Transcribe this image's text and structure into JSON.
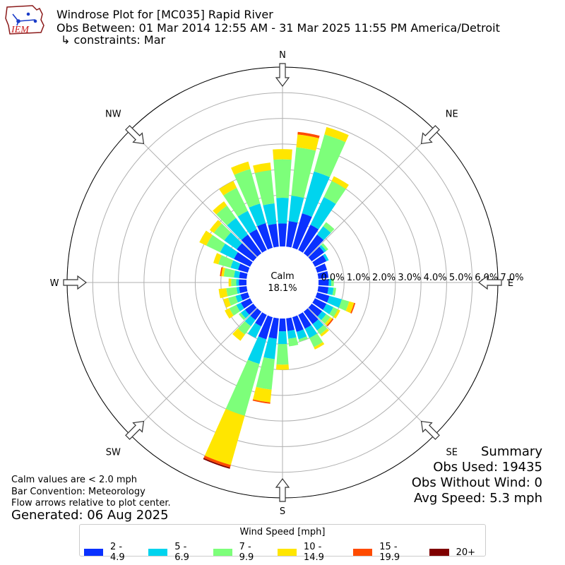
{
  "header": {
    "logo_text": "IEM",
    "title_line1": "Windrose Plot for [MC035] Rapid River",
    "title_line2": "Obs Between: 01 Mar 2014 12:55 AM - 31 Mar 2025 11:55 PM America/Detroit",
    "title_line3": "↳ constraints: Mar"
  },
  "notes": {
    "calm_def": "Calm values are < 2.0 mph",
    "bar_convention": "Bar Convention: Meteorology",
    "flow_arrows": "Flow arrows relative to plot center.",
    "generated": "Generated: 06 Aug 2025"
  },
  "summary": {
    "heading": "Summary",
    "obs_used": "Obs Used: 19435",
    "obs_without_wind": "Obs Without Wind: 0",
    "avg_speed": "Avg Speed: 5.3 mph"
  },
  "chart_data": {
    "type": "windrose",
    "calm_label": "Calm",
    "calm_value": "18.1%",
    "radial_ticks": [
      "0.0%",
      "1.0%",
      "2.0%",
      "3.0%",
      "4.0%",
      "5.0%",
      "6.0%",
      "7.0%"
    ],
    "radial_max": 7.0,
    "calm_fraction": 0.181,
    "compass_labels": [
      {
        "label": "N",
        "dir": 0
      },
      {
        "label": "NE",
        "dir": 45
      },
      {
        "label": "E",
        "dir": 90
      },
      {
        "label": "SE",
        "dir": 135
      },
      {
        "label": "S",
        "dir": 180
      },
      {
        "label": "SW",
        "dir": 225
      },
      {
        "label": "W",
        "dir": 270
      },
      {
        "label": "NW",
        "dir": 315
      }
    ],
    "legend_title": "Wind Speed [mph]",
    "speed_bins": [
      {
        "label": "2 - 4.9",
        "color": "#0a31ff"
      },
      {
        "label": "5 - 6.9",
        "color": "#00d4ee"
      },
      {
        "label": "7 - 9.9",
        "color": "#7dff7a"
      },
      {
        "label": "10 - 14.9",
        "color": "#ffe600"
      },
      {
        "label": "15 - 19.9",
        "color": "#ff4b00"
      },
      {
        "label": "20+",
        "color": "#7f0000"
      }
    ],
    "directions": [
      0,
      10,
      20,
      30,
      40,
      50,
      60,
      70,
      80,
      90,
      100,
      110,
      120,
      130,
      140,
      150,
      160,
      170,
      180,
      190,
      200,
      210,
      220,
      230,
      240,
      250,
      260,
      270,
      280,
      290,
      300,
      310,
      320,
      330,
      340,
      350
    ],
    "bins_percent": [
      [
        0.9,
        1.0,
        1.5,
        0.4,
        0.0,
        0.0
      ],
      [
        1.0,
        1.0,
        1.9,
        0.5,
        0.1,
        0.0
      ],
      [
        1.4,
        1.7,
        1.5,
        0.3,
        0.0,
        0.0
      ],
      [
        1.1,
        1.2,
        0.7,
        0.2,
        0.0,
        0.0
      ],
      [
        0.9,
        0.4,
        0.2,
        0.0,
        0.0,
        0.0
      ],
      [
        0.6,
        0.1,
        0.1,
        0.0,
        0.0,
        0.0
      ],
      [
        0.5,
        0.1,
        0.0,
        0.0,
        0.0,
        0.0
      ],
      [
        0.4,
        0.0,
        0.0,
        0.0,
        0.0,
        0.0
      ],
      [
        0.4,
        0.0,
        0.0,
        0.0,
        0.0,
        0.0
      ],
      [
        0.4,
        0.1,
        0.1,
        0.0,
        0.0,
        0.0
      ],
      [
        0.4,
        0.2,
        0.1,
        0.0,
        0.0,
        0.0
      ],
      [
        0.5,
        0.5,
        0.3,
        0.2,
        0.05,
        0.0
      ],
      [
        0.5,
        0.3,
        0.2,
        0.1,
        0.0,
        0.0
      ],
      [
        0.5,
        0.2,
        0.2,
        0.1,
        0.05,
        0.0
      ],
      [
        0.6,
        0.3,
        0.2,
        0.1,
        0.0,
        0.0
      ],
      [
        0.6,
        0.4,
        0.4,
        0.1,
        0.0,
        0.0
      ],
      [
        0.6,
        0.3,
        0.1,
        0.0,
        0.0,
        0.0
      ],
      [
        0.5,
        0.3,
        0.3,
        0.0,
        0.0,
        0.0
      ],
      [
        0.5,
        0.5,
        0.8,
        0.2,
        0.0,
        0.0
      ],
      [
        0.8,
        0.8,
        1.2,
        0.5,
        0.05,
        0.0
      ],
      [
        0.9,
        1.0,
        2.1,
        2.0,
        0.1,
        0.05
      ],
      [
        0.5,
        0.5,
        0.0,
        0.0,
        0.0,
        0.0
      ],
      [
        0.4,
        0.3,
        0.4,
        0.3,
        0.0,
        0.0
      ],
      [
        0.4,
        0.2,
        0.1,
        0.0,
        0.0,
        0.0
      ],
      [
        0.4,
        0.2,
        0.3,
        0.2,
        0.0,
        0.0
      ],
      [
        0.3,
        0.2,
        0.3,
        0.2,
        0.0,
        0.0
      ],
      [
        0.3,
        0.1,
        0.4,
        0.3,
        0.0,
        0.0
      ],
      [
        0.3,
        0.1,
        0.2,
        0.1,
        0.0,
        0.0
      ],
      [
        0.3,
        0.2,
        0.4,
        0.1,
        0.05,
        0.0
      ],
      [
        0.4,
        0.3,
        0.5,
        0.2,
        0.0,
        0.0
      ],
      [
        0.7,
        0.6,
        0.6,
        0.3,
        0.0,
        0.0
      ],
      [
        0.8,
        0.6,
        0.5,
        0.2,
        0.0,
        0.0
      ],
      [
        0.9,
        0.8,
        0.6,
        0.2,
        0.0,
        0.0
      ],
      [
        0.9,
        0.8,
        1.0,
        0.3,
        0.0,
        0.0
      ],
      [
        1.0,
        0.8,
        1.4,
        0.3,
        0.0,
        0.0
      ],
      [
        0.9,
        0.8,
        1.3,
        0.3,
        0.0,
        0.0
      ]
    ]
  }
}
